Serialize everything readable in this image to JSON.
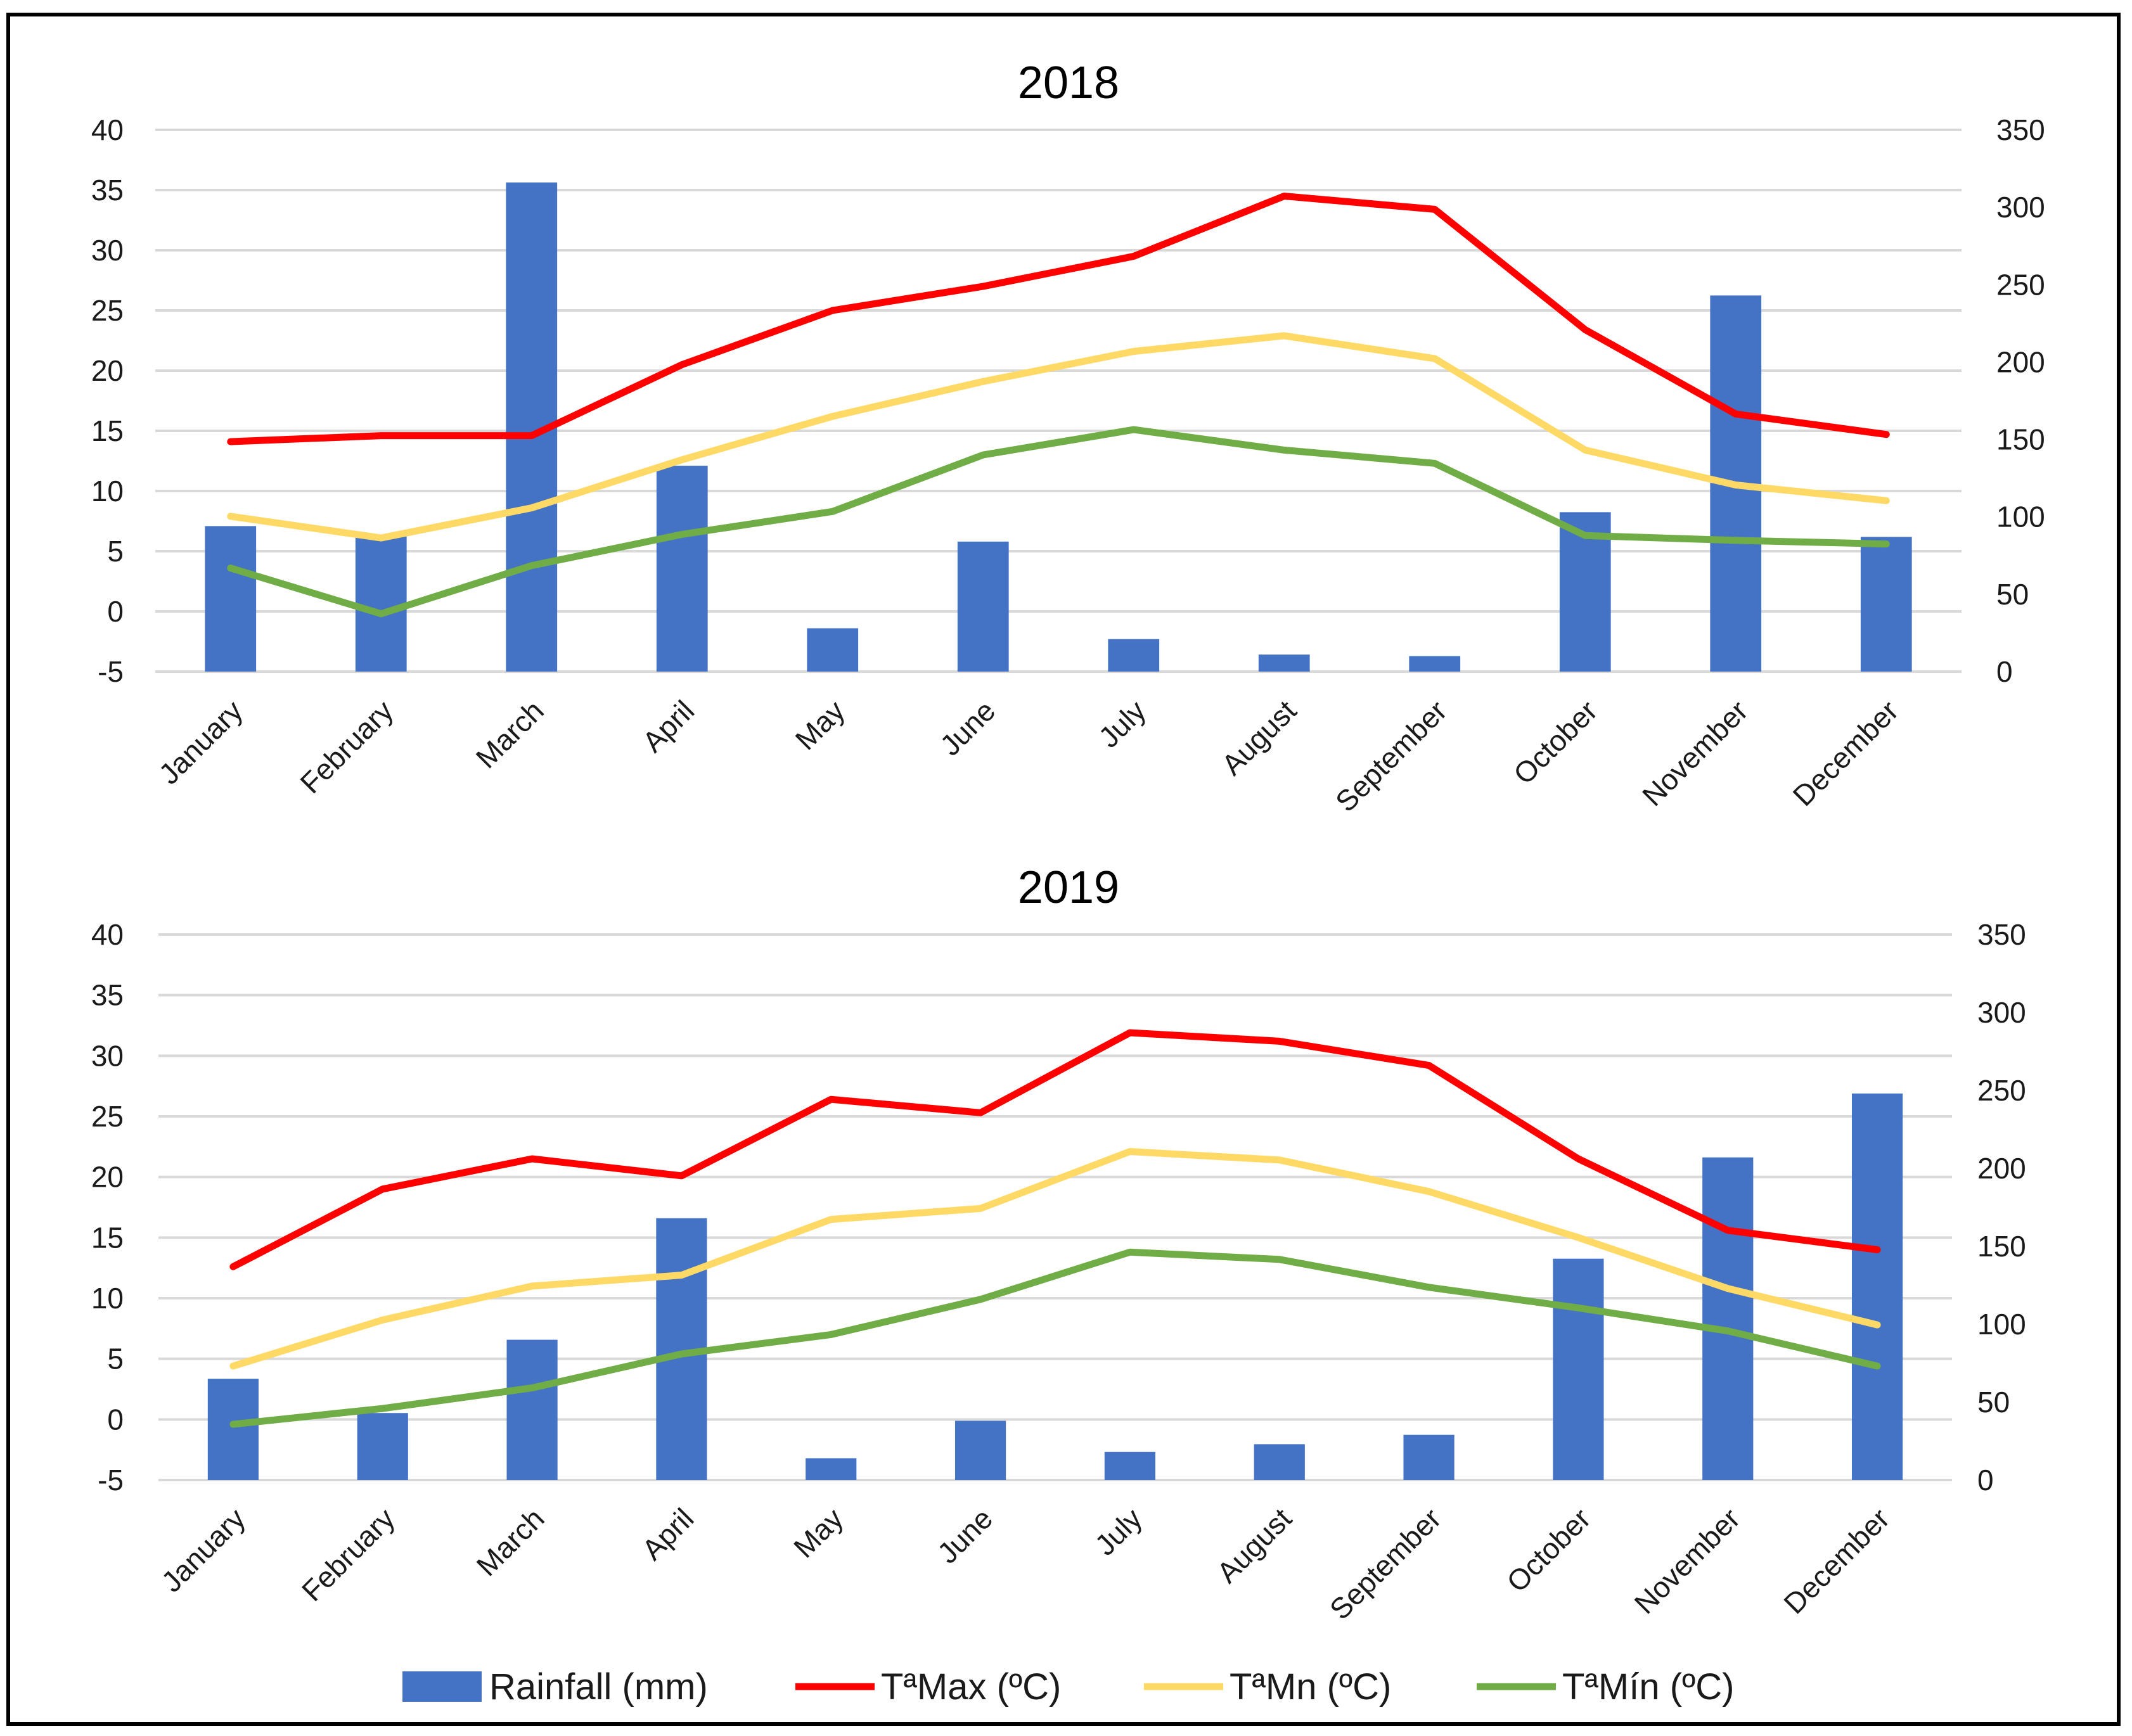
{
  "chart_data": [
    {
      "type": "bar+line",
      "title": "2018",
      "categories": [
        "January",
        "February",
        "March",
        "April",
        "May",
        "June",
        "July",
        "August",
        "September",
        "October",
        "November",
        "December"
      ],
      "left_axis": {
        "ylim": [
          -5,
          40
        ],
        "ticks": [
          "40",
          "35",
          "30",
          "25",
          "20",
          "15",
          "10",
          "5",
          "0",
          "-5"
        ]
      },
      "right_axis": {
        "ylim": [
          0,
          350
        ],
        "ticks": [
          "350",
          "300",
          "250",
          "200",
          "150",
          "100",
          "50",
          "0"
        ]
      },
      "series": [
        {
          "name": "Rainfall (mm)",
          "type": "bar",
          "axis": "right",
          "color": "#4472C4",
          "values": [
            94,
            88,
            316,
            133,
            28,
            84,
            21,
            11,
            10,
            103,
            243,
            87
          ]
        },
        {
          "name": "TªMax (ºC)",
          "type": "line",
          "axis": "left",
          "color": "#FF0000",
          "values": [
            14.1,
            14.6,
            14.6,
            20.5,
            25.0,
            27.0,
            29.5,
            34.5,
            33.4,
            23.4,
            16.4,
            14.7
          ]
        },
        {
          "name": "TªMn (ºC)",
          "type": "line",
          "axis": "left",
          "color": "#FFD966",
          "values": [
            7.9,
            6.1,
            8.6,
            12.6,
            16.2,
            19.1,
            21.6,
            22.9,
            21.0,
            13.4,
            10.5,
            9.2
          ]
        },
        {
          "name": "TªMín (ºC)",
          "type": "line",
          "axis": "left",
          "color": "#70AD47",
          "values": [
            3.6,
            -0.2,
            3.8,
            6.4,
            8.3,
            13.0,
            15.1,
            13.4,
            12.3,
            6.3,
            5.9,
            5.6
          ]
        }
      ]
    },
    {
      "type": "bar+line",
      "title": "2019",
      "categories": [
        "January",
        "February",
        "March",
        "April",
        "May",
        "June",
        "July",
        "August",
        "September",
        "October",
        "November",
        "December"
      ],
      "left_axis": {
        "ylim": [
          -5,
          40
        ],
        "ticks": [
          "40",
          "35",
          "30",
          "25",
          "20",
          "15",
          "10",
          "5",
          "0",
          "-5"
        ]
      },
      "right_axis": {
        "ylim": [
          0,
          350
        ],
        "ticks": [
          "350",
          "300",
          "250",
          "200",
          "150",
          "100",
          "50",
          "0"
        ]
      },
      "series": [
        {
          "name": "Rainfall (mm)",
          "type": "bar",
          "axis": "right",
          "color": "#4472C4",
          "values": [
            65,
            43,
            90,
            168,
            14,
            38,
            18,
            23,
            29,
            142,
            207,
            248
          ]
        },
        {
          "name": "TªMax (ºC)",
          "type": "line",
          "axis": "left",
          "color": "#FF0000",
          "values": [
            12.6,
            19.0,
            21.5,
            20.1,
            26.4,
            25.3,
            31.9,
            31.2,
            29.2,
            21.5,
            15.6,
            14.0
          ]
        },
        {
          "name": "TªMn (ºC)",
          "type": "line",
          "axis": "left",
          "color": "#FFD966",
          "values": [
            4.4,
            8.2,
            11.0,
            11.9,
            16.5,
            17.4,
            22.1,
            21.4,
            18.8,
            15.0,
            10.8,
            7.8
          ]
        },
        {
          "name": "TªMín (ºC)",
          "type": "line",
          "axis": "left",
          "color": "#70AD47",
          "values": [
            -0.4,
            0.9,
            2.6,
            5.4,
            7.0,
            9.9,
            13.8,
            13.2,
            10.9,
            9.2,
            7.3,
            4.4
          ]
        }
      ]
    }
  ],
  "legend": {
    "items": [
      {
        "label": "Rainfall (mm)",
        "kind": "bar",
        "color": "#4472C4"
      },
      {
        "label": "TªMax (ºC)",
        "kind": "line",
        "color": "#FF0000"
      },
      {
        "label": "TªMn (ºC)",
        "kind": "line",
        "color": "#FFD966"
      },
      {
        "label": "TªMín (ºC)",
        "kind": "line",
        "color": "#70AD47"
      }
    ]
  }
}
